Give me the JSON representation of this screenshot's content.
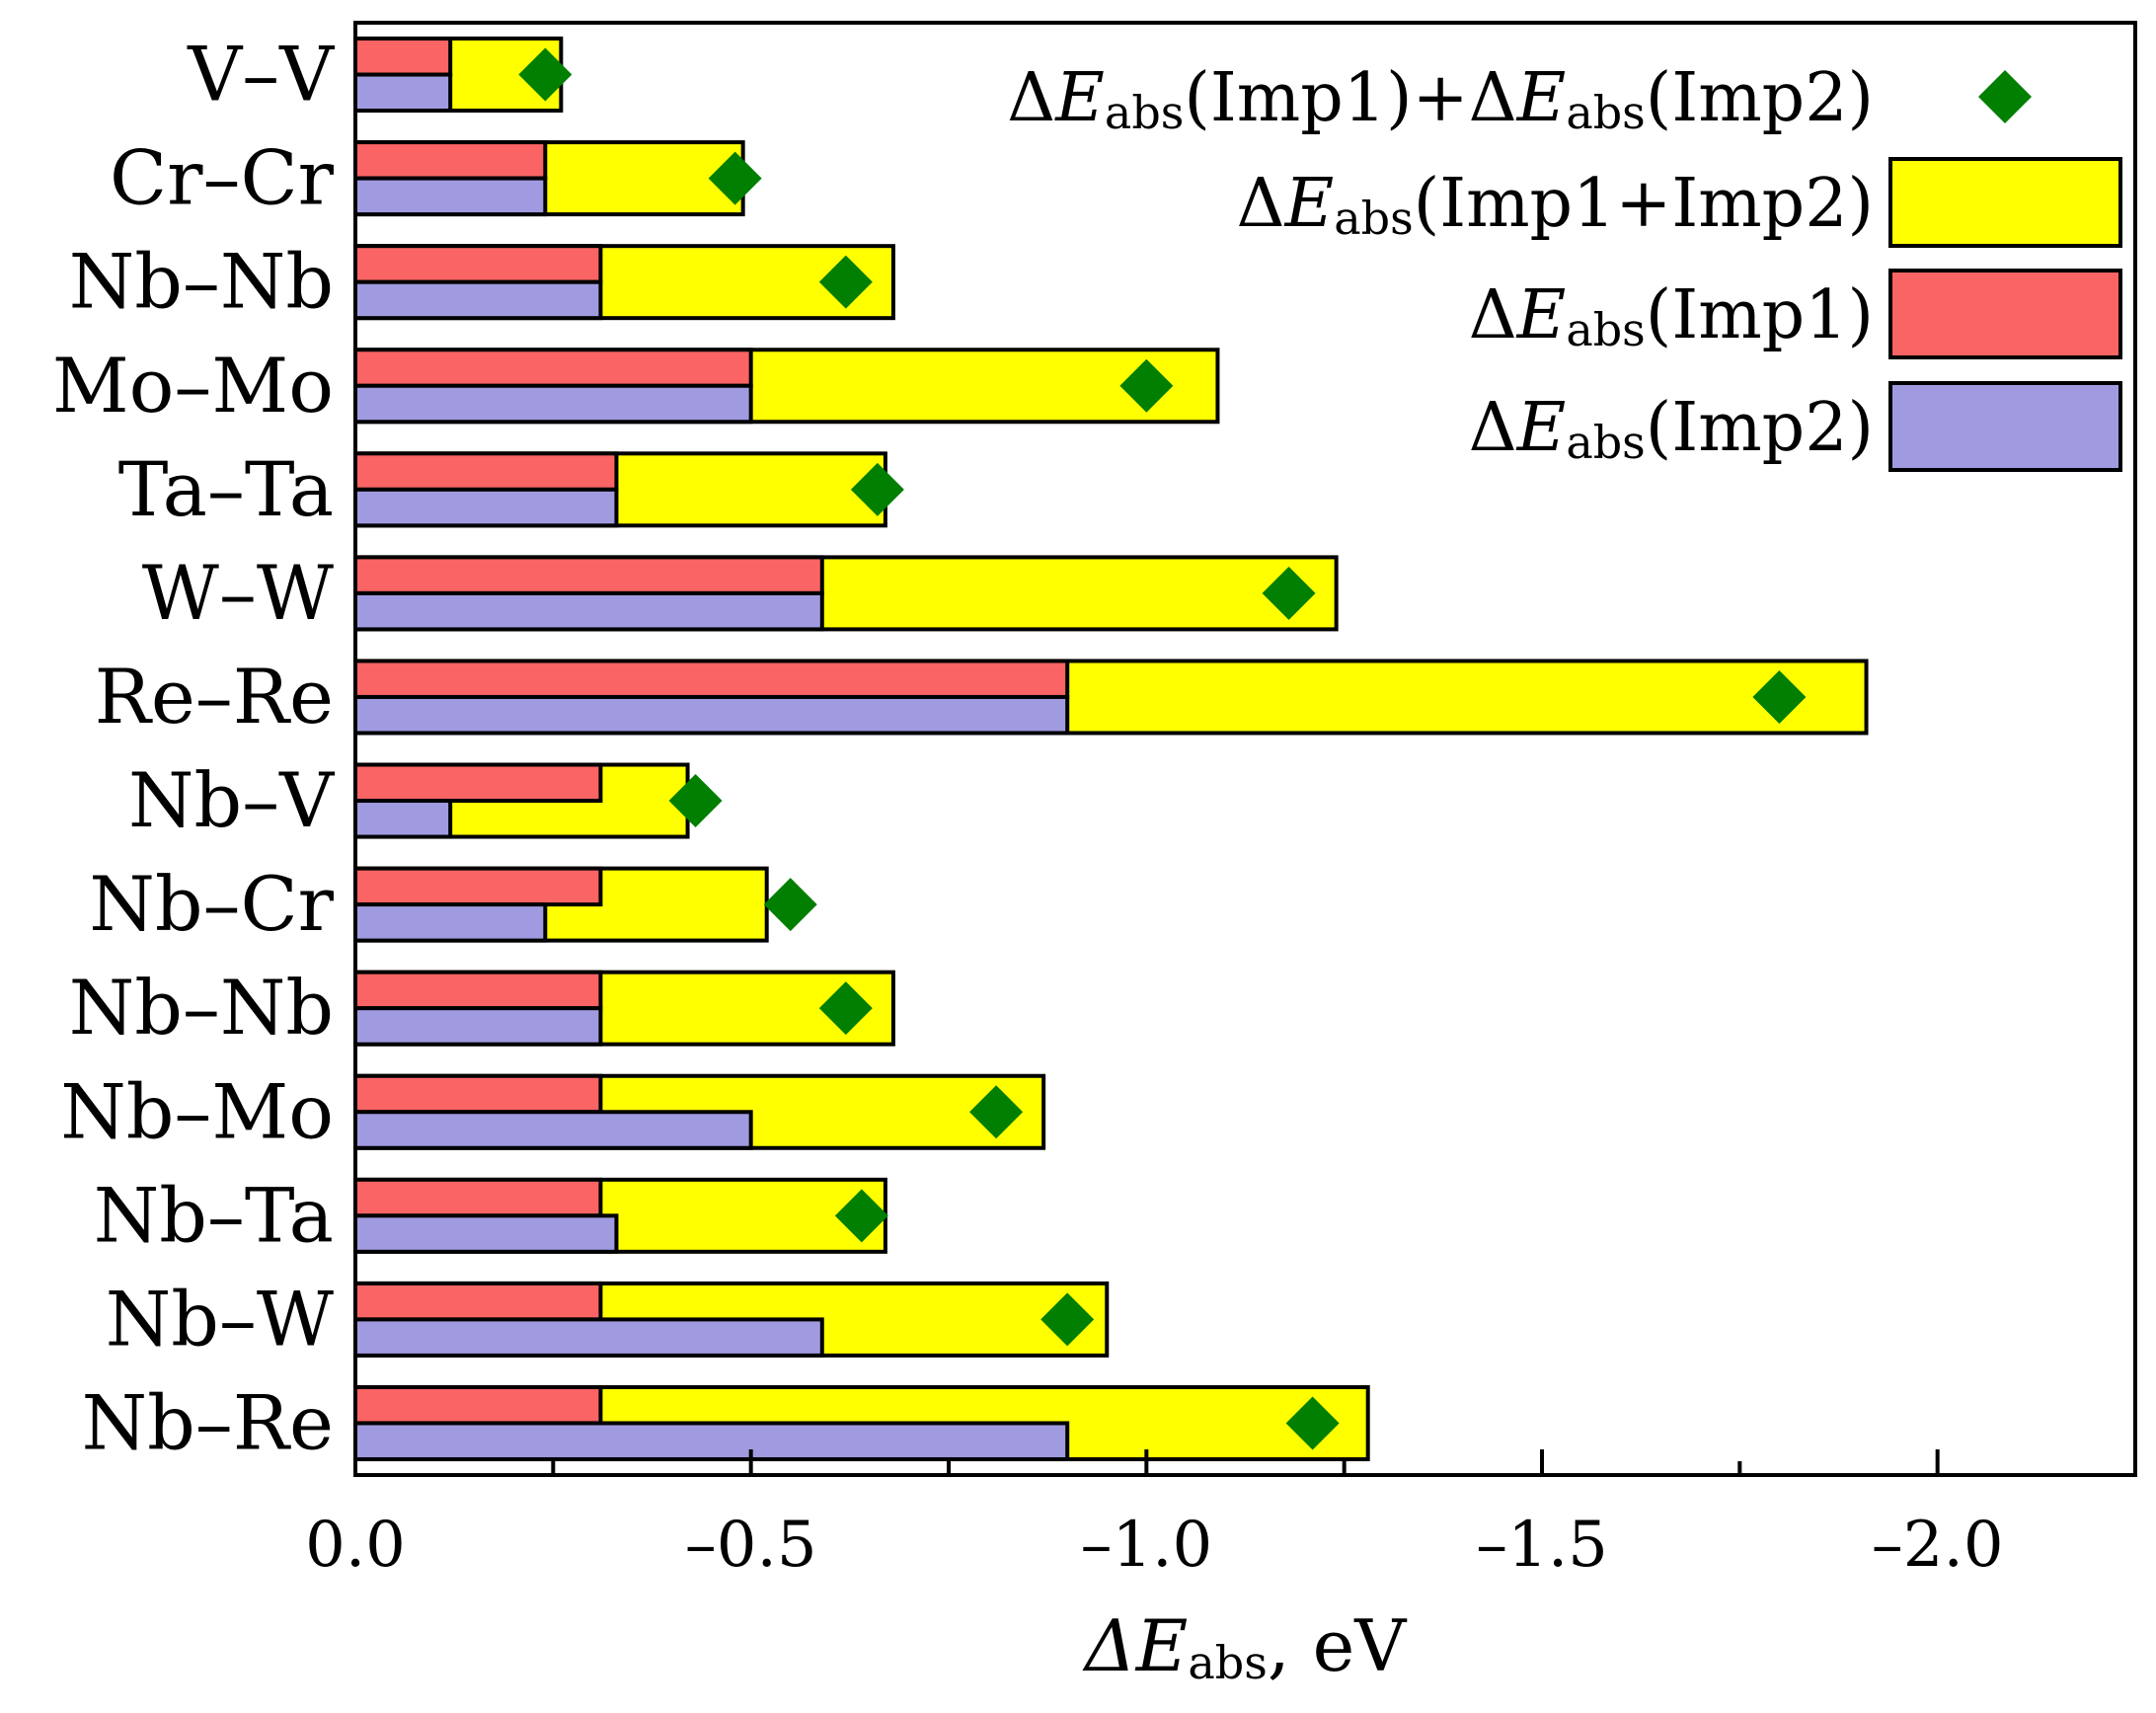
{
  "chart_data": {
    "type": "bar",
    "orientation": "horizontal",
    "categories": [
      "V–V",
      "Cr–Cr",
      "Nb–Nb",
      "Mo–Mo",
      "Ta–Ta",
      "W–W",
      "Re–Re",
      "Nb–V",
      "Nb–Cr",
      "Nb–Nb",
      "Nb–Mo",
      "Nb–Ta",
      "Nb–W",
      "Nb–Re"
    ],
    "series": [
      {
        "name": "ΔEabs(Imp1+Imp2)",
        "key": "combined",
        "kind": "bar",
        "color": "#ffff00",
        "values": [
          -0.26,
          -0.49,
          -0.68,
          -1.09,
          -0.67,
          -1.24,
          -1.91,
          -0.42,
          -0.52,
          -0.68,
          -0.87,
          -0.67,
          -0.95,
          -1.28
        ]
      },
      {
        "name": "ΔEabs(Imp1)",
        "key": "imp1",
        "kind": "bar",
        "color": "#fa6464",
        "values": [
          -0.12,
          -0.24,
          -0.31,
          -0.5,
          -0.33,
          -0.59,
          -0.9,
          -0.31,
          -0.31,
          -0.31,
          -0.31,
          -0.31,
          -0.31,
          -0.31
        ]
      },
      {
        "name": "ΔEabs(Imp2)",
        "key": "imp2",
        "kind": "bar",
        "color": "#a09be0",
        "values": [
          -0.12,
          -0.24,
          -0.31,
          -0.5,
          -0.33,
          -0.59,
          -0.9,
          -0.12,
          -0.24,
          -0.31,
          -0.5,
          -0.33,
          -0.59,
          -0.9
        ]
      },
      {
        "name": "ΔEabs(Imp1)+ΔEabs(Imp2)",
        "key": "sum",
        "kind": "marker",
        "color": "#007f00",
        "values": [
          -0.24,
          -0.48,
          -0.62,
          -1.0,
          -0.66,
          -1.18,
          -1.8,
          -0.43,
          -0.55,
          -0.62,
          -0.81,
          -0.64,
          -0.9,
          -1.21
        ]
      }
    ],
    "xlabel": {
      "main": "ΔE",
      "sub": "abs",
      "tail": ", eV"
    },
    "ylabel": "",
    "xlim": [
      0.0,
      -2.25
    ],
    "xticks": [
      0.0,
      -0.5,
      -1.0,
      -1.5,
      -2.0
    ],
    "xtick_labels": [
      "0.0",
      "–0.5",
      "–1.0",
      "–1.5",
      "–2.0"
    ],
    "minor_xticks": [
      -0.25,
      -0.75,
      -1.25,
      -1.75
    ],
    "legend": {
      "placement": "top-right",
      "entries": [
        {
          "pre": "ΔE",
          "sub": "abs",
          "post": "(Imp1)+ΔE",
          "sub2": "abs",
          "post2": "(Imp2)",
          "series": "sum"
        },
        {
          "pre": "ΔE",
          "sub": "abs",
          "post": "(Imp1+Imp2)",
          "series": "combined"
        },
        {
          "pre": "ΔE",
          "sub": "abs",
          "post": "(Imp1)",
          "series": "imp1"
        },
        {
          "pre": "ΔE",
          "sub": "abs",
          "post": "(Imp2)",
          "series": "imp2"
        }
      ]
    },
    "grid": false
  }
}
